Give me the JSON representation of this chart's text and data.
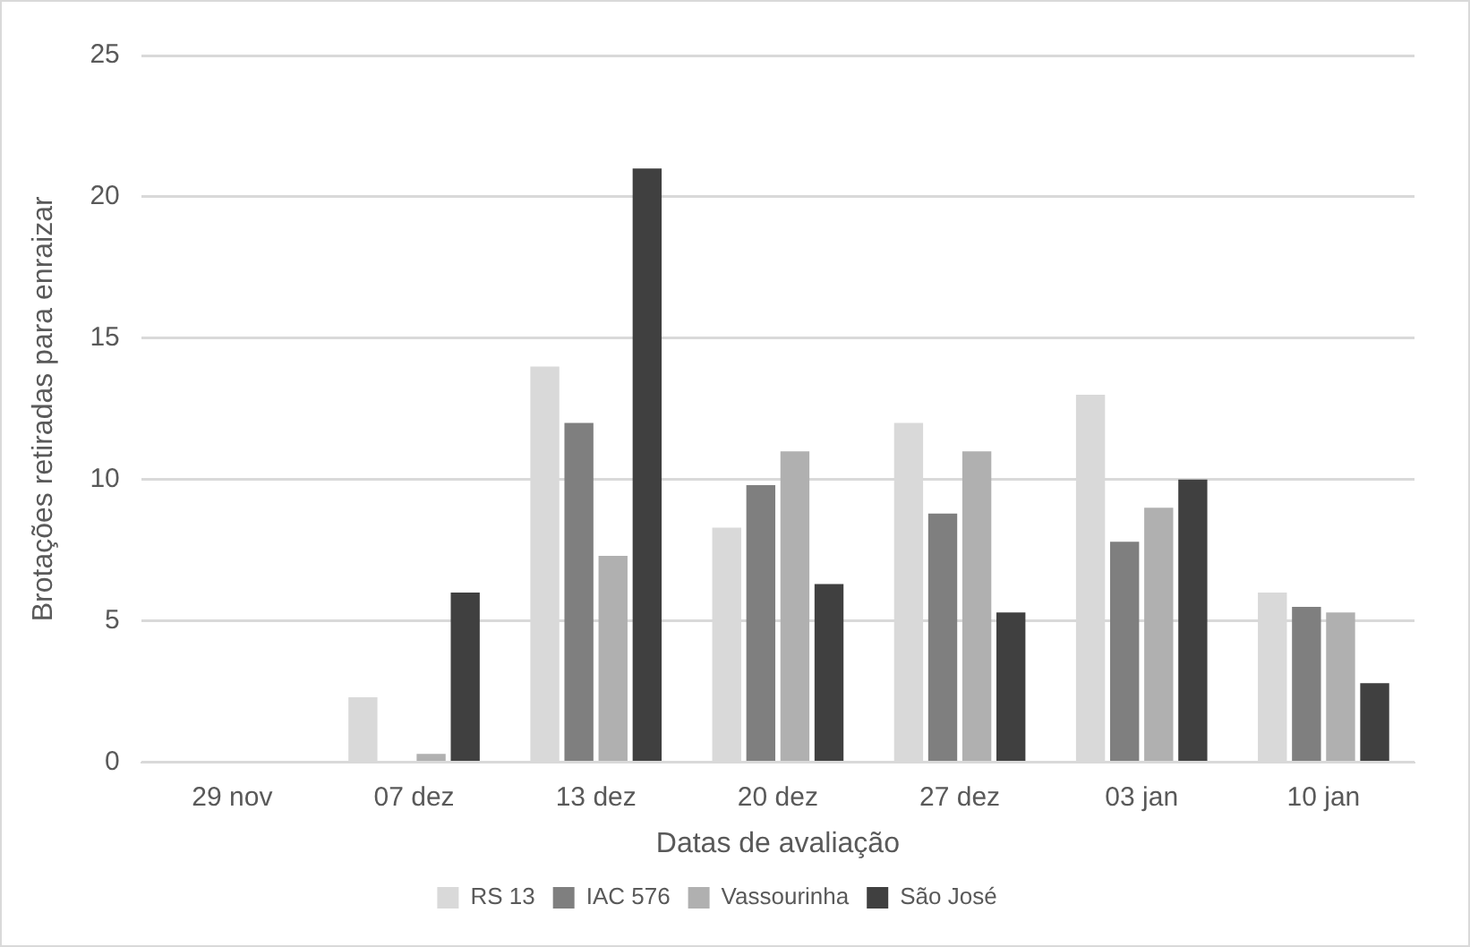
{
  "chart_data": {
    "type": "bar",
    "xlabel": "Datas de avaliação",
    "ylabel": "Brotações retiradas para enraizar",
    "categories": [
      "29 nov",
      "07 dez",
      "13 dez",
      "20 dez",
      "27 dez",
      "03 jan",
      "10 jan"
    ],
    "series": [
      {
        "name": "RS 13",
        "color": "#d9d9d9",
        "values": [
          0,
          2.3,
          14,
          8.3,
          12,
          13,
          6
        ]
      },
      {
        "name": "IAC 576",
        "color": "#7f7f7f",
        "values": [
          0,
          0,
          12,
          9.8,
          8.8,
          7.8,
          5.5
        ]
      },
      {
        "name": "Vassourinha",
        "color": "#b0b0b0",
        "values": [
          0,
          0.3,
          7.3,
          11,
          11,
          9,
          5.3
        ]
      },
      {
        "name": "São José",
        "color": "#404040",
        "values": [
          0,
          6,
          21,
          6.3,
          5.3,
          10,
          2.8
        ]
      }
    ],
    "ylim": [
      0,
      25
    ],
    "yticks": [
      0,
      5,
      10,
      15,
      20,
      25
    ],
    "grid": "y",
    "legend": "bottom"
  }
}
